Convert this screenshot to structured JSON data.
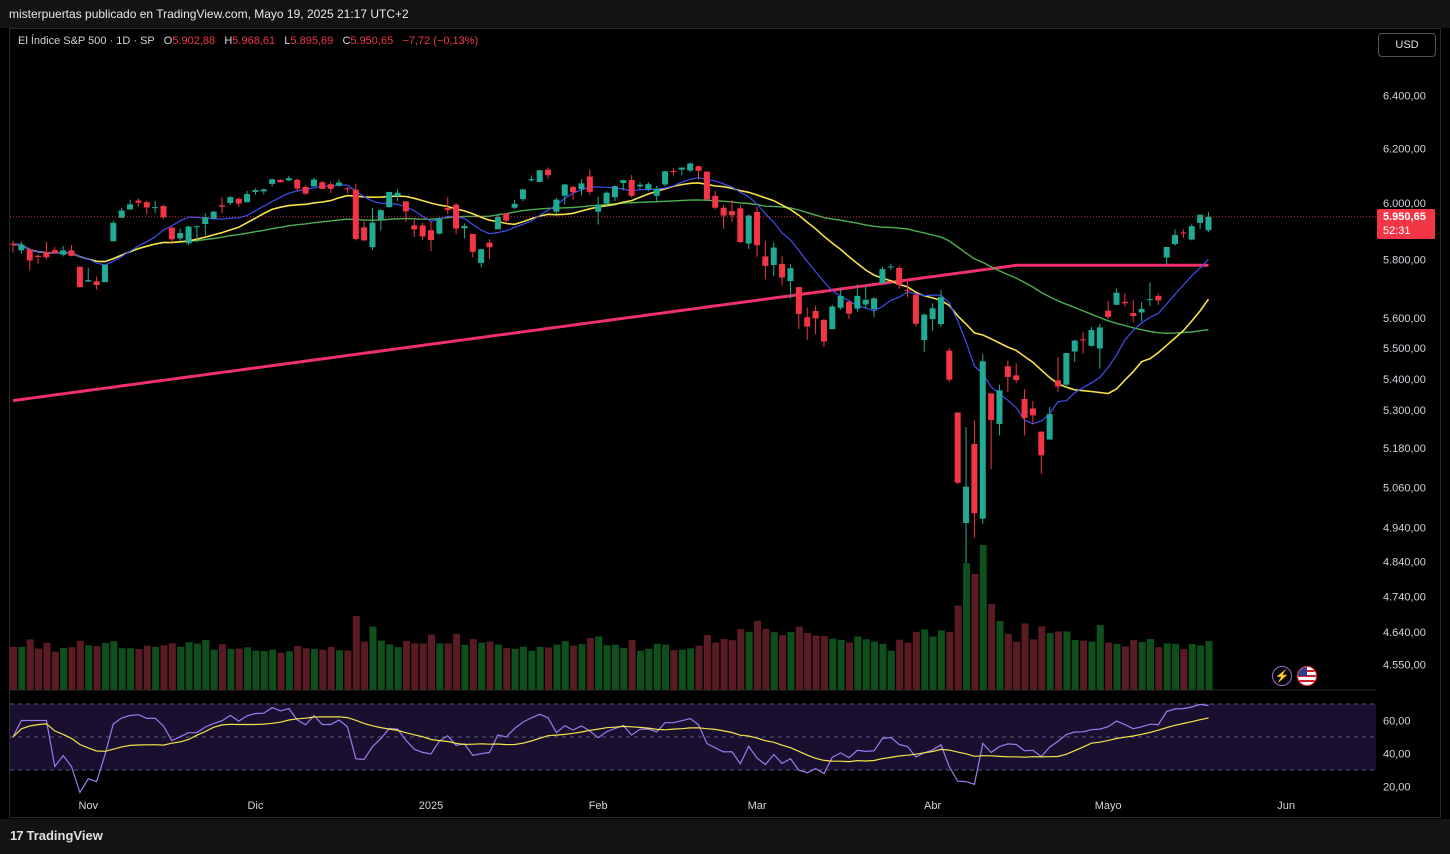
{
  "header": {
    "text": "misterpuertas publicado en TradingView.com, Mayo 19, 2025 21:17 UTC+2"
  },
  "legend": {
    "symbol": "El Índice S&P 500 · 1D · SP",
    "o_label": "O",
    "o": "5.902,88",
    "h_label": "H",
    "h": "5.968,61",
    "l_label": "L",
    "l": "5.895,69",
    "c_label": "C",
    "c": "5.950,65",
    "change": "−7,72 (−0,13%)"
  },
  "currency_button": "USD",
  "last_price": {
    "price": "5.950,65",
    "countdown": "52:31"
  },
  "footer": {
    "brand": "TradingView"
  },
  "icons": {
    "bolt": "lightning-icon",
    "flag": "us-flag-icon"
  },
  "colors": {
    "up": "#22ab94",
    "down": "#f23645",
    "sma_short": "#3f4ff0",
    "sma_mid": "#f6e24a",
    "sma_long": "#4caf50",
    "sma_200": "#f0306a",
    "rsi": "#9c7bf0",
    "rsi_ma": "#f6e24a"
  },
  "chart_data": {
    "type": "candlestick",
    "symbol": "SPX",
    "interval": "1D",
    "y_axis": {
      "ticks": [
        "6.400,00",
        "6.200,00",
        "6.000,00",
        "5.800,00",
        "5.600,00",
        "5.500,00",
        "5.400,00",
        "5.300,00",
        "5.180,00",
        "5.060,00",
        "4.940,00",
        "4.840,00",
        "4.740,00",
        "4.640,00",
        "4.550,00"
      ],
      "scale": "log"
    },
    "x_axis": {
      "ticks": [
        "Nov",
        "Dic",
        "2025",
        "Feb",
        "Mar",
        "Abr",
        "Mayo",
        "Jun"
      ]
    },
    "rsi": {
      "ticks": [
        "60,00",
        "40,00",
        "20,00"
      ],
      "upper_band": 70,
      "lower_band": 30
    },
    "sessions": [
      {
        "d": "2024-10-21",
        "o": 5855,
        "h": 5866,
        "l": 5824,
        "c": 5853
      },
      {
        "d": "2024-10-22",
        "o": 5832,
        "h": 5863,
        "l": 5821,
        "c": 5851
      },
      {
        "d": "2024-10-23",
        "o": 5835,
        "h": 5842,
        "l": 5762,
        "c": 5797
      },
      {
        "d": "2024-10-24",
        "o": 5813,
        "h": 5817,
        "l": 5784,
        "c": 5809
      },
      {
        "d": "2024-10-25",
        "o": 5826,
        "h": 5862,
        "l": 5799,
        "c": 5808
      },
      {
        "d": "2024-10-28",
        "o": 5833,
        "h": 5843,
        "l": 5826,
        "c": 5823
      },
      {
        "d": "2024-10-29",
        "o": 5817,
        "h": 5847,
        "l": 5811,
        "c": 5832
      },
      {
        "d": "2024-10-30",
        "o": 5832,
        "h": 5851,
        "l": 5811,
        "c": 5813
      },
      {
        "d": "2024-10-31",
        "o": 5775,
        "h": 5775,
        "l": 5703,
        "c": 5705
      },
      {
        "d": "2024-11-01",
        "o": 5724,
        "h": 5772,
        "l": 5723,
        "c": 5729
      },
      {
        "d": "2024-11-04",
        "o": 5725,
        "h": 5741,
        "l": 5696,
        "c": 5712
      },
      {
        "d": "2024-11-05",
        "o": 5722,
        "h": 5783,
        "l": 5722,
        "c": 5782
      },
      {
        "d": "2024-11-06",
        "o": 5864,
        "h": 5936,
        "l": 5864,
        "c": 5929
      },
      {
        "d": "2024-11-07",
        "o": 5947,
        "h": 5983,
        "l": 5947,
        "c": 5973
      },
      {
        "d": "2024-11-08",
        "o": 5977,
        "h": 6012,
        "l": 5976,
        "c": 5995
      },
      {
        "d": "2024-11-11",
        "o": 6009,
        "h": 6017,
        "l": 5986,
        "c": 6001
      },
      {
        "d": "2024-11-12",
        "o": 6003,
        "h": 6009,
        "l": 5960,
        "c": 5984
      },
      {
        "d": "2024-11-13",
        "o": 5985,
        "h": 6008,
        "l": 5965,
        "c": 5985
      },
      {
        "d": "2024-11-14",
        "o": 5989,
        "h": 5993,
        "l": 5942,
        "c": 5949
      },
      {
        "d": "2024-11-15",
        "o": 5912,
        "h": 5915,
        "l": 5854,
        "c": 5871
      },
      {
        "d": "2024-11-18",
        "o": 5874,
        "h": 5908,
        "l": 5865,
        "c": 5893
      },
      {
        "d": "2024-11-19",
        "o": 5857,
        "h": 5918,
        "l": 5851,
        "c": 5916
      },
      {
        "d": "2024-11-20",
        "o": 5917,
        "h": 5920,
        "l": 5860,
        "c": 5917
      },
      {
        "d": "2024-11-21",
        "o": 5925,
        "h": 5963,
        "l": 5884,
        "c": 5949
      },
      {
        "d": "2024-11-22",
        "o": 5944,
        "h": 5972,
        "l": 5944,
        "c": 5969
      },
      {
        "d": "2024-11-25",
        "o": 5992,
        "h": 6020,
        "l": 5963,
        "c": 5987
      },
      {
        "d": "2024-11-26",
        "o": 6000,
        "h": 6025,
        "l": 5993,
        "c": 6021
      },
      {
        "d": "2024-11-27",
        "o": 6015,
        "h": 6021,
        "l": 5987,
        "c": 5998
      },
      {
        "d": "2024-11-29",
        "o": 6003,
        "h": 6044,
        "l": 6003,
        "c": 6032
      },
      {
        "d": "2024-12-02",
        "o": 6040,
        "h": 6053,
        "l": 6030,
        "c": 6047
      },
      {
        "d": "2024-12-03",
        "o": 6042,
        "h": 6052,
        "l": 6031,
        "c": 6049
      },
      {
        "d": "2024-12-04",
        "o": 6069,
        "h": 6088,
        "l": 6060,
        "c": 6086
      },
      {
        "d": "2024-12-05",
        "o": 6084,
        "h": 6086,
        "l": 6074,
        "c": 6075
      },
      {
        "d": "2024-12-06",
        "o": 6082,
        "h": 6099,
        "l": 6079,
        "c": 6090
      },
      {
        "d": "2024-12-09",
        "o": 6084,
        "h": 6089,
        "l": 6041,
        "c": 6052
      },
      {
        "d": "2024-12-10",
        "o": 6058,
        "h": 6065,
        "l": 6029,
        "c": 6034
      },
      {
        "d": "2024-12-11",
        "o": 6060,
        "h": 6092,
        "l": 6060,
        "c": 6085
      },
      {
        "d": "2024-12-12",
        "o": 6075,
        "h": 6079,
        "l": 6051,
        "c": 6051
      },
      {
        "d": "2024-12-13",
        "o": 6068,
        "h": 6078,
        "l": 6035,
        "c": 6051
      },
      {
        "d": "2024-12-16",
        "o": 6063,
        "h": 6085,
        "l": 6059,
        "c": 6074
      },
      {
        "d": "2024-12-17",
        "o": 6053,
        "h": 6058,
        "l": 6035,
        "c": 6050
      },
      {
        "d": "2024-12-18",
        "o": 6048,
        "h": 6070,
        "l": 5867,
        "c": 5872
      },
      {
        "d": "2024-12-19",
        "o": 5913,
        "h": 5935,
        "l": 5866,
        "c": 5867
      },
      {
        "d": "2024-12-20",
        "o": 5843,
        "h": 5982,
        "l": 5833,
        "c": 5930
      },
      {
        "d": "2024-12-23",
        "o": 5941,
        "h": 5978,
        "l": 5902,
        "c": 5974
      },
      {
        "d": "2024-12-24",
        "o": 5985,
        "h": 6040,
        "l": 5983,
        "c": 6040
      },
      {
        "d": "2024-12-26",
        "o": 6025,
        "h": 6049,
        "l": 6007,
        "c": 6037
      },
      {
        "d": "2024-12-27",
        "o": 6006,
        "h": 6006,
        "l": 5932,
        "c": 5970
      },
      {
        "d": "2024-12-30",
        "o": 5920,
        "h": 5940,
        "l": 5879,
        "c": 5906
      },
      {
        "d": "2024-12-31",
        "o": 5920,
        "h": 5929,
        "l": 5869,
        "c": 5881
      },
      {
        "d": "2025-01-02",
        "o": 5903,
        "h": 5935,
        "l": 5829,
        "c": 5868
      },
      {
        "d": "2025-01-03",
        "o": 5891,
        "h": 5949,
        "l": 5888,
        "c": 5942
      },
      {
        "d": "2025-01-06",
        "o": 5982,
        "h": 6021,
        "l": 5960,
        "c": 5975
      },
      {
        "d": "2025-01-07",
        "o": 5994,
        "h": 6000,
        "l": 5890,
        "c": 5909
      },
      {
        "d": "2025-01-08",
        "o": 5910,
        "h": 5927,
        "l": 5874,
        "c": 5918
      },
      {
        "d": "2025-01-10",
        "o": 5890,
        "h": 5890,
        "l": 5808,
        "c": 5827
      },
      {
        "d": "2025-01-13",
        "o": 5788,
        "h": 5837,
        "l": 5773,
        "c": 5836
      },
      {
        "d": "2025-01-14",
        "o": 5859,
        "h": 5871,
        "l": 5802,
        "c": 5843
      },
      {
        "d": "2025-01-15",
        "o": 5906,
        "h": 5961,
        "l": 5906,
        "c": 5950
      },
      {
        "d": "2025-01-16",
        "o": 5963,
        "h": 5964,
        "l": 5927,
        "c": 5937
      },
      {
        "d": "2025-01-17",
        "o": 5983,
        "h": 6011,
        "l": 5978,
        "c": 5997
      },
      {
        "d": "2025-01-21",
        "o": 6014,
        "h": 6051,
        "l": 6007,
        "c": 6049
      },
      {
        "d": "2025-01-22",
        "o": 6082,
        "h": 6100,
        "l": 6077,
        "c": 6086
      },
      {
        "d": "2025-01-23",
        "o": 6076,
        "h": 6119,
        "l": 6075,
        "c": 6119
      },
      {
        "d": "2025-01-24",
        "o": 6121,
        "h": 6129,
        "l": 6088,
        "c": 6101
      },
      {
        "d": "2025-01-27",
        "o": 5969,
        "h": 6018,
        "l": 5962,
        "c": 6012
      },
      {
        "d": "2025-01-28",
        "o": 6026,
        "h": 6069,
        "l": 5995,
        "c": 6067
      },
      {
        "d": "2025-01-29",
        "o": 6058,
        "h": 6062,
        "l": 6012,
        "c": 6039
      },
      {
        "d": "2025-01-30",
        "o": 6050,
        "h": 6086,
        "l": 6028,
        "c": 6071
      },
      {
        "d": "2025-01-31",
        "o": 6096,
        "h": 6121,
        "l": 6030,
        "c": 6040
      },
      {
        "d": "2025-02-03",
        "o": 5969,
        "h": 6022,
        "l": 5923,
        "c": 5994
      },
      {
        "d": "2025-02-04",
        "o": 5998,
        "h": 6042,
        "l": 5990,
        "c": 6037
      },
      {
        "d": "2025-02-05",
        "o": 6021,
        "h": 6062,
        "l": 6007,
        "c": 6061
      },
      {
        "d": "2025-02-06",
        "o": 6072,
        "h": 6084,
        "l": 6046,
        "c": 6083
      },
      {
        "d": "2025-02-07",
        "o": 6083,
        "h": 6101,
        "l": 6020,
        "c": 6026
      },
      {
        "d": "2025-02-10",
        "o": 6060,
        "h": 6074,
        "l": 6051,
        "c": 6066
      },
      {
        "d": "2025-02-11",
        "o": 6050,
        "h": 6076,
        "l": 6042,
        "c": 6068
      },
      {
        "d": "2025-02-12",
        "o": 6026,
        "h": 6063,
        "l": 6003,
        "c": 6052
      },
      {
        "d": "2025-02-13",
        "o": 6067,
        "h": 6117,
        "l": 6061,
        "c": 6115
      },
      {
        "d": "2025-02-14",
        "o": 6116,
        "h": 6127,
        "l": 6101,
        "c": 6115
      },
      {
        "d": "2025-02-18",
        "o": 6121,
        "h": 6129,
        "l": 6100,
        "c": 6129
      },
      {
        "d": "2025-02-19",
        "o": 6118,
        "h": 6147,
        "l": 6111,
        "c": 6144
      },
      {
        "d": "2025-02-20",
        "o": 6134,
        "h": 6134,
        "l": 6084,
        "c": 6117
      },
      {
        "d": "2025-02-21",
        "o": 6114,
        "h": 6114,
        "l": 6008,
        "c": 6013
      },
      {
        "d": "2025-02-24",
        "o": 6026,
        "h": 6043,
        "l": 5977,
        "c": 5983
      },
      {
        "d": "2025-02-25",
        "o": 5983,
        "h": 5992,
        "l": 5908,
        "c": 5955
      },
      {
        "d": "2025-02-26",
        "o": 5971,
        "h": 6010,
        "l": 5932,
        "c": 5956
      },
      {
        "d": "2025-02-27",
        "o": 5981,
        "h": 5993,
        "l": 5858,
        "c": 5861
      },
      {
        "d": "2025-02-28",
        "o": 5856,
        "h": 5959,
        "l": 5837,
        "c": 5955
      },
      {
        "d": "2025-03-03",
        "o": 5968,
        "h": 5987,
        "l": 5810,
        "c": 5850
      },
      {
        "d": "2025-03-04",
        "o": 5811,
        "h": 5866,
        "l": 5732,
        "c": 5778
      },
      {
        "d": "2025-03-05",
        "o": 5781,
        "h": 5860,
        "l": 5742,
        "c": 5842
      },
      {
        "d": "2025-03-06",
        "o": 5785,
        "h": 5812,
        "l": 5711,
        "c": 5738
      },
      {
        "d": "2025-03-07",
        "o": 5726,
        "h": 5783,
        "l": 5666,
        "c": 5770
      },
      {
        "d": "2025-03-10",
        "o": 5705,
        "h": 5705,
        "l": 5564,
        "c": 5614
      },
      {
        "d": "2025-03-11",
        "o": 5603,
        "h": 5636,
        "l": 5528,
        "c": 5572
      },
      {
        "d": "2025-03-12",
        "o": 5624,
        "h": 5642,
        "l": 5546,
        "c": 5599
      },
      {
        "d": "2025-03-13",
        "o": 5594,
        "h": 5597,
        "l": 5504,
        "c": 5522
      },
      {
        "d": "2025-03-14",
        "o": 5563,
        "h": 5645,
        "l": 5563,
        "c": 5639
      },
      {
        "d": "2025-03-17",
        "o": 5635,
        "h": 5704,
        "l": 5628,
        "c": 5675
      },
      {
        "d": "2025-03-18",
        "o": 5655,
        "h": 5659,
        "l": 5597,
        "c": 5615
      },
      {
        "d": "2025-03-19",
        "o": 5632,
        "h": 5715,
        "l": 5622,
        "c": 5675
      },
      {
        "d": "2025-03-20",
        "o": 5646,
        "h": 5711,
        "l": 5632,
        "c": 5662
      },
      {
        "d": "2025-03-21",
        "o": 5630,
        "h": 5670,
        "l": 5603,
        "c": 5667
      },
      {
        "d": "2025-03-24",
        "o": 5718,
        "h": 5775,
        "l": 5718,
        "c": 5767
      },
      {
        "d": "2025-03-25",
        "o": 5775,
        "h": 5786,
        "l": 5764,
        "c": 5776
      },
      {
        "d": "2025-03-26",
        "o": 5771,
        "h": 5777,
        "l": 5700,
        "c": 5712
      },
      {
        "d": "2025-03-27",
        "o": 5696,
        "h": 5732,
        "l": 5670,
        "c": 5693
      },
      {
        "d": "2025-03-28",
        "o": 5679,
        "h": 5685,
        "l": 5572,
        "c": 5581
      },
      {
        "d": "2025-03-31",
        "o": 5527,
        "h": 5615,
        "l": 5488,
        "c": 5612
      },
      {
        "d": "2025-04-01",
        "o": 5597,
        "h": 5650,
        "l": 5558,
        "c": 5633
      },
      {
        "d": "2025-04-02",
        "o": 5580,
        "h": 5695,
        "l": 5571,
        "c": 5671
      },
      {
        "d": "2025-04-03",
        "o": 5492,
        "h": 5500,
        "l": 5390,
        "c": 5397
      },
      {
        "d": "2025-04-04",
        "o": 5292,
        "h": 5292,
        "l": 5070,
        "c": 5074
      },
      {
        "d": "2025-04-07",
        "o": 4953,
        "h": 5246,
        "l": 4835,
        "c": 5062
      },
      {
        "d": "2025-04-08",
        "o": 5193,
        "h": 5267,
        "l": 4910,
        "c": 4982
      },
      {
        "d": "2025-04-09",
        "o": 4966,
        "h": 5481,
        "l": 4950,
        "c": 5457
      },
      {
        "d": "2025-04-10",
        "o": 5353,
        "h": 5353,
        "l": 5115,
        "c": 5268
      },
      {
        "d": "2025-04-11",
        "o": 5256,
        "h": 5381,
        "l": 5220,
        "c": 5363
      },
      {
        "d": "2025-04-14",
        "o": 5441,
        "h": 5459,
        "l": 5358,
        "c": 5406
      },
      {
        "d": "2025-04-15",
        "o": 5411,
        "h": 5450,
        "l": 5386,
        "c": 5396
      },
      {
        "d": "2025-04-16",
        "o": 5335,
        "h": 5367,
        "l": 5220,
        "c": 5275
      },
      {
        "d": "2025-04-17",
        "o": 5305,
        "h": 5328,
        "l": 5255,
        "c": 5283
      },
      {
        "d": "2025-04-21",
        "o": 5232,
        "h": 5232,
        "l": 5101,
        "c": 5158
      },
      {
        "d": "2025-04-22",
        "o": 5207,
        "h": 5309,
        "l": 5207,
        "c": 5287
      },
      {
        "d": "2025-04-23",
        "o": 5395,
        "h": 5470,
        "l": 5358,
        "c": 5375
      },
      {
        "d": "2025-04-24",
        "o": 5381,
        "h": 5485,
        "l": 5371,
        "c": 5484
      },
      {
        "d": "2025-04-25",
        "o": 5489,
        "h": 5528,
        "l": 5455,
        "c": 5525
      },
      {
        "d": "2025-04-28",
        "o": 5529,
        "h": 5553,
        "l": 5483,
        "c": 5528
      },
      {
        "d": "2025-04-29",
        "o": 5508,
        "h": 5571,
        "l": 5505,
        "c": 5560
      },
      {
        "d": "2025-04-30",
        "o": 5499,
        "h": 5581,
        "l": 5433,
        "c": 5569
      },
      {
        "d": "2025-05-01",
        "o": 5625,
        "h": 5658,
        "l": 5597,
        "c": 5604
      },
      {
        "d": "2025-05-02",
        "o": 5645,
        "h": 5700,
        "l": 5644,
        "c": 5686
      },
      {
        "d": "2025-05-05",
        "o": 5655,
        "h": 5683,
        "l": 5640,
        "c": 5650
      },
      {
        "d": "2025-05-06",
        "o": 5617,
        "h": 5660,
        "l": 5586,
        "c": 5607
      },
      {
        "d": "2025-05-07",
        "o": 5619,
        "h": 5654,
        "l": 5589,
        "c": 5631
      },
      {
        "d": "2025-05-08",
        "o": 5663,
        "h": 5721,
        "l": 5641,
        "c": 5664
      },
      {
        "d": "2025-05-09",
        "o": 5675,
        "h": 5683,
        "l": 5644,
        "c": 5660
      },
      {
        "d": "2025-05-12",
        "o": 5807,
        "h": 5844,
        "l": 5784,
        "c": 5844
      },
      {
        "d": "2025-05-13",
        "o": 5854,
        "h": 5906,
        "l": 5848,
        "c": 5886
      },
      {
        "d": "2025-05-14",
        "o": 5895,
        "h": 5906,
        "l": 5876,
        "c": 5892
      },
      {
        "d": "2025-05-15",
        "o": 5870,
        "h": 5924,
        "l": 5867,
        "c": 5917
      },
      {
        "d": "2025-05-16",
        "o": 5929,
        "h": 5958,
        "l": 5908,
        "c": 5958
      },
      {
        "d": "2025-05-19",
        "o": 5902.88,
        "h": 5968.61,
        "l": 5895.69,
        "c": 5950.65
      }
    ]
  }
}
